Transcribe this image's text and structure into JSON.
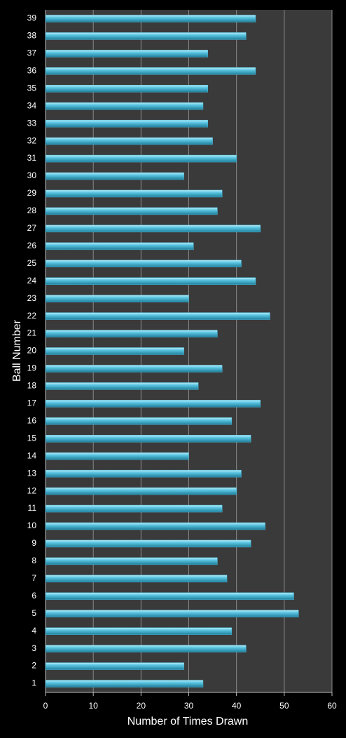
{
  "chart_data": {
    "type": "barh",
    "categories": [
      "1",
      "2",
      "3",
      "4",
      "5",
      "6",
      "7",
      "8",
      "9",
      "10",
      "11",
      "12",
      "13",
      "14",
      "15",
      "16",
      "17",
      "18",
      "19",
      "20",
      "21",
      "22",
      "23",
      "24",
      "25",
      "26",
      "27",
      "28",
      "29",
      "30",
      "31",
      "32",
      "33",
      "34",
      "35",
      "36",
      "37",
      "38",
      "39"
    ],
    "values": [
      33,
      29,
      42,
      39,
      53,
      52,
      38,
      36,
      43,
      46,
      37,
      40,
      41,
      30,
      43,
      39,
      45,
      32,
      37,
      29,
      36,
      47,
      30,
      44,
      41,
      31,
      45,
      36,
      37,
      29,
      40,
      35,
      34,
      33,
      34,
      44,
      34,
      42,
      44
    ],
    "color": "#4ab8d8",
    "xlabel": "Number of Times Drawn",
    "ylabel": "Ball Number",
    "xlim": [
      0,
      60
    ],
    "xticks": [
      0,
      10,
      20,
      30,
      40,
      50,
      60
    ],
    "grid": true
  }
}
